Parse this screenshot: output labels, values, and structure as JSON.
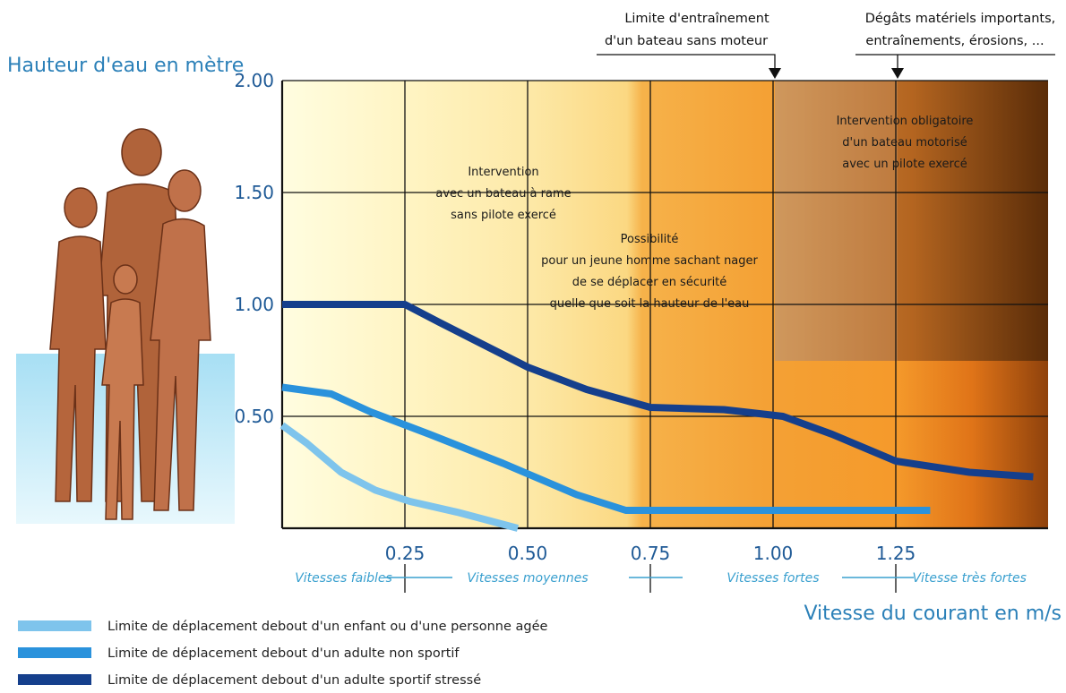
{
  "chart_data": {
    "type": "line",
    "ylabel": "Hauteur d'eau en mètre",
    "xlabel": "Vitesse du courant en m/s",
    "xlim": [
      0,
      1.55
    ],
    "ylim": [
      0,
      2.0
    ],
    "x_ticks": [
      0.25,
      0.5,
      0.75,
      1.0,
      1.25
    ],
    "x_tick_labels": [
      "0.25",
      "0.50",
      "0.75",
      "1.00",
      "1.25"
    ],
    "y_ticks": [
      0.5,
      1.0,
      1.5,
      2.0
    ],
    "y_tick_labels": [
      "0.50",
      "1.00",
      "1.50",
      "2.00"
    ],
    "grid": true,
    "series": [
      {
        "name": "Limite de déplacement debout d'un enfant ou d'une personne agée",
        "color": "#7ec4ec",
        "points": [
          [
            0,
            0.46
          ],
          [
            0.05,
            0.38
          ],
          [
            0.12,
            0.25
          ],
          [
            0.19,
            0.17
          ],
          [
            0.26,
            0.12
          ],
          [
            0.36,
            0.07
          ],
          [
            0.48,
            0.0
          ]
        ]
      },
      {
        "name": "Limite de déplacement debout d'un adulte non sportif",
        "color": "#2a92dc",
        "points": [
          [
            0,
            0.63
          ],
          [
            0.1,
            0.6
          ],
          [
            0.18,
            0.52
          ],
          [
            0.3,
            0.42
          ],
          [
            0.45,
            0.29
          ],
          [
            0.6,
            0.15
          ],
          [
            0.7,
            0.08
          ],
          [
            0.9,
            0.08
          ],
          [
            1.2,
            0.08
          ],
          [
            1.32,
            0.08
          ]
        ]
      },
      {
        "name": "Limite de déplacement debout d'un adulte sportif stressé",
        "color": "#153f8c",
        "points": [
          [
            0,
            1.0
          ],
          [
            0.25,
            1.0
          ],
          [
            0.32,
            0.92
          ],
          [
            0.5,
            0.72
          ],
          [
            0.62,
            0.62
          ],
          [
            0.75,
            0.54
          ],
          [
            0.9,
            0.53
          ],
          [
            1.02,
            0.5
          ],
          [
            1.12,
            0.42
          ],
          [
            1.25,
            0.3
          ],
          [
            1.4,
            0.25
          ],
          [
            1.53,
            0.23
          ]
        ]
      }
    ],
    "zones": [
      {
        "label": "Vitesses faibles",
        "from": 0,
        "to": 0.25
      },
      {
        "label": "Vitesses moyennes",
        "from": 0.25,
        "to": 0.75
      },
      {
        "label": "Vitesses fortes",
        "from": 0.75,
        "to": 1.25
      },
      {
        "label": "Vitesse très fortes",
        "from": 1.25,
        "to": 1.55
      }
    ],
    "annotations": [
      {
        "lines": [
          "Intervention",
          "avec un bateau à rame",
          "sans pilote exercé"
        ]
      },
      {
        "lines": [
          "Possibilité",
          "pour un jeune homme sachant nager",
          "de se déplacer en sécurité",
          "quelle que soit la hauteur de l'eau"
        ]
      },
      {
        "lines": [
          "Intervention obligatoire",
          "d'un bateau motorisé",
          "avec un pilote exercé"
        ]
      }
    ],
    "top_annotations": [
      {
        "lines": [
          "Limite d'entraînement",
          "d'un bateau sans moteur"
        ],
        "at_x": 1.0
      },
      {
        "lines": [
          "Dégâts matériels importants,",
          "entraînements, érosions, ..."
        ],
        "at_x": 1.25
      }
    ]
  }
}
